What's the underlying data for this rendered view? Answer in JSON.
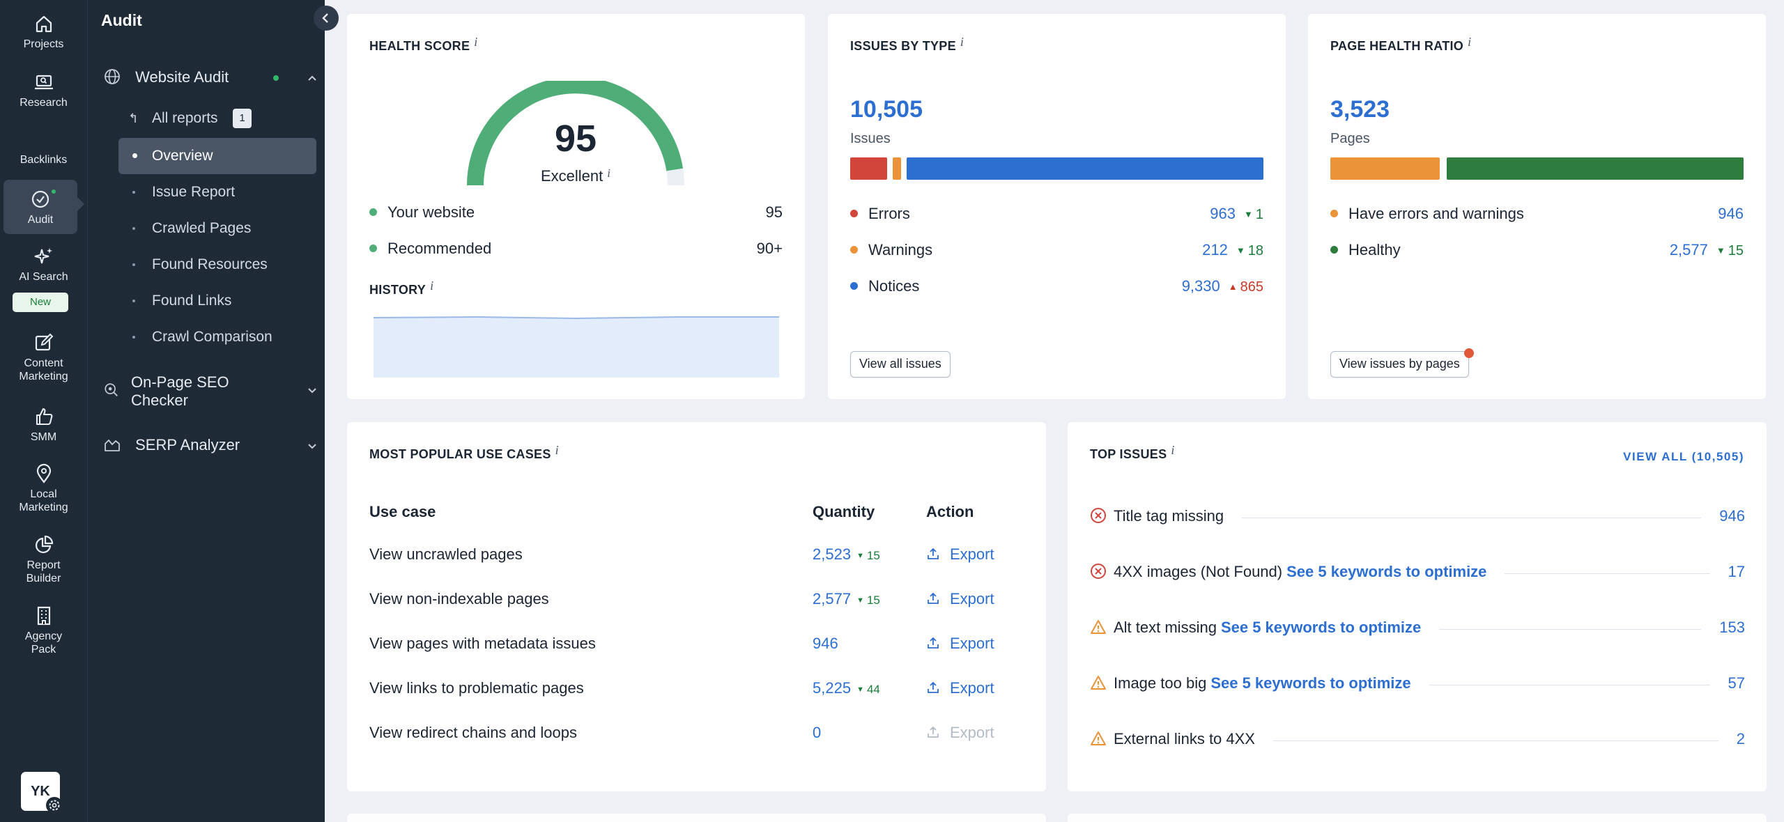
{
  "rail": {
    "projects": "Projects",
    "research": "Research",
    "backlinks": "Backlinks",
    "audit": "Audit",
    "ai_search": "AI Search",
    "new_badge": "New",
    "content_marketing_1": "Content",
    "content_marketing_2": "Marketing",
    "smm": "SMM",
    "local_marketing_1": "Local",
    "local_marketing_2": "Marketing",
    "report_builder_1": "Report",
    "report_builder_2": "Builder",
    "agency_pack_1": "Agency",
    "agency_pack_2": "Pack",
    "avatar": "YK"
  },
  "sidebar": {
    "title": "Audit",
    "website_audit": "Website Audit",
    "all_reports": "All reports",
    "all_reports_count": "1",
    "items": [
      "Overview",
      "Issue Report",
      "Crawled Pages",
      "Found Resources",
      "Found Links",
      "Crawl Comparison"
    ],
    "on_page_1": "On-Page SEO",
    "on_page_2": "Checker",
    "serp": "SERP Analyzer"
  },
  "health": {
    "title": "HEALTH SCORE",
    "score": "95",
    "score_value": 95,
    "rating": "Excellent",
    "rows": [
      {
        "label": "Your website",
        "value": "95"
      },
      {
        "label": "Recommended",
        "value": "90+"
      }
    ],
    "history_title": "HISTORY"
  },
  "issues_by_type": {
    "title": "ISSUES BY TYPE",
    "total": "10,505",
    "total_label": "Issues",
    "rows": [
      {
        "label": "Errors",
        "value": "963",
        "delta": "1",
        "dir": "down",
        "color": "#d1453b",
        "count": 963
      },
      {
        "label": "Warnings",
        "value": "212",
        "delta": "18",
        "dir": "down",
        "color": "#ea9338",
        "count": 212
      },
      {
        "label": "Notices",
        "value": "9,330",
        "delta": "865",
        "dir": "up",
        "color": "#2c6fd1",
        "count": 9330
      }
    ],
    "button": "View all issues"
  },
  "page_health": {
    "title": "PAGE HEALTH RATIO",
    "total": "3,523",
    "total_label": "Pages",
    "rows": [
      {
        "label": "Have errors and warnings",
        "value": "946",
        "delta": "",
        "dir": "",
        "color": "#ea9338",
        "count": 946
      },
      {
        "label": "Healthy",
        "value": "2,577",
        "delta": "15",
        "dir": "down",
        "color": "#2e7d3f",
        "count": 2577
      }
    ],
    "button": "View issues by pages"
  },
  "use_cases": {
    "title": "MOST POPULAR USE CASES",
    "headers": [
      "Use case",
      "Quantity",
      "Action"
    ],
    "rows": [
      {
        "label": "View uncrawled pages",
        "qty": "2,523",
        "delta": "15",
        "action": "Export",
        "enabled": true
      },
      {
        "label": "View non-indexable pages",
        "qty": "2,577",
        "delta": "15",
        "action": "Export",
        "enabled": true
      },
      {
        "label": "View pages with metadata issues",
        "qty": "946",
        "delta": "",
        "action": "Export",
        "enabled": true
      },
      {
        "label": "View links to problematic pages",
        "qty": "5,225",
        "delta": "44",
        "action": "Export",
        "enabled": true
      },
      {
        "label": "View redirect chains and loops",
        "qty": "0",
        "delta": "",
        "action": "Export",
        "enabled": false
      }
    ]
  },
  "top_issues": {
    "title": "TOP ISSUES",
    "view_all": "VIEW ALL (10,505)",
    "rows": [
      {
        "kind": "error",
        "label": "Title tag missing",
        "link": "",
        "count": "946"
      },
      {
        "kind": "error",
        "label": "4XX images (Not Found)",
        "link": "See 5 keywords to optimize",
        "count": "17"
      },
      {
        "kind": "warning",
        "label": "Alt text missing",
        "link": "See 5 keywords to optimize",
        "count": "153"
      },
      {
        "kind": "warning",
        "label": "Image too big",
        "link": "See 5 keywords to optimize",
        "count": "57"
      },
      {
        "kind": "warning",
        "label": "External links to 4XX",
        "link": "",
        "count": "2"
      }
    ]
  }
}
